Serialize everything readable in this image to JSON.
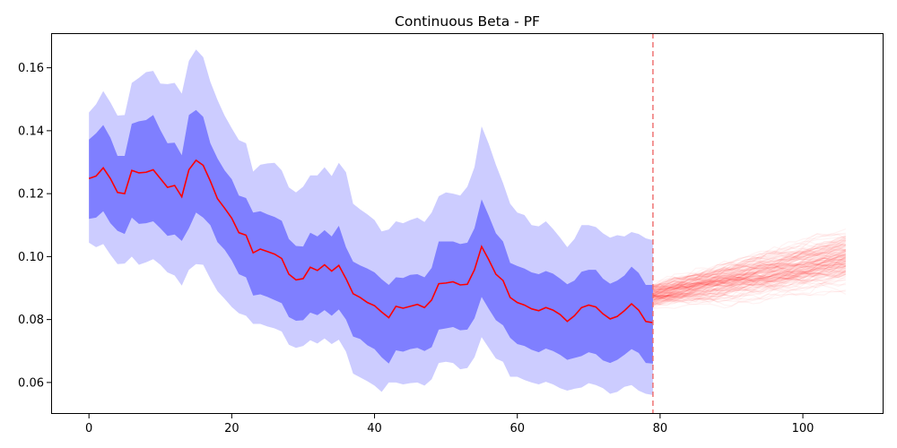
{
  "chart_data": {
    "type": "area",
    "title": "Continuous Beta - PF",
    "xlabel": "",
    "ylabel": "",
    "xlim": [
      -5.3,
      111.3
    ],
    "ylim": [
      0.05,
      0.171
    ],
    "x_ticks": [
      0,
      20,
      40,
      60,
      80,
      100
    ],
    "y_ticks": [
      0.06,
      0.08,
      0.1,
      0.12,
      0.14,
      0.16
    ],
    "grid": false,
    "legend": "none",
    "colors": {
      "mean_line": "#ff0000",
      "band_inner": "#7f7fff",
      "band_outer": "#ccccff",
      "forecast": "#ff0000",
      "vline": "#ef6a6a"
    },
    "vline_x": 79,
    "x": [
      0,
      1,
      2,
      3,
      4,
      5,
      6,
      7,
      8,
      9,
      10,
      11,
      12,
      13,
      14,
      15,
      16,
      17,
      18,
      19,
      20,
      21,
      22,
      23,
      24,
      25,
      26,
      27,
      28,
      29,
      30,
      31,
      32,
      33,
      34,
      35,
      36,
      37,
      38,
      39,
      40,
      41,
      42,
      43,
      44,
      45,
      46,
      47,
      48,
      49,
      50,
      51,
      52,
      53,
      54,
      55,
      56,
      57,
      58,
      59,
      60,
      61,
      62,
      63,
      64,
      65,
      66,
      67,
      68,
      69,
      70,
      71,
      72,
      73,
      74,
      75,
      76,
      77,
      78,
      79
    ],
    "mean": [
      0.1248,
      0.1256,
      0.1282,
      0.1248,
      0.1204,
      0.12,
      0.1274,
      0.1266,
      0.1268,
      0.1276,
      0.1248,
      0.122,
      0.1226,
      0.119,
      0.1276,
      0.1306,
      0.129,
      0.124,
      0.1184,
      0.1154,
      0.1122,
      0.1076,
      0.1068,
      0.1012,
      0.1024,
      0.1016,
      0.1008,
      0.0994,
      0.0944,
      0.0926,
      0.093,
      0.0966,
      0.0956,
      0.0974,
      0.0954,
      0.0972,
      0.093,
      0.0882,
      0.087,
      0.0854,
      0.0844,
      0.0824,
      0.0806,
      0.0842,
      0.0836,
      0.0842,
      0.0848,
      0.0838,
      0.0862,
      0.0914,
      0.0916,
      0.092,
      0.091,
      0.0912,
      0.0958,
      0.1032,
      0.099,
      0.0944,
      0.0924,
      0.087,
      0.0854,
      0.0846,
      0.0834,
      0.0828,
      0.0838,
      0.083,
      0.0816,
      0.0794,
      0.0812,
      0.0838,
      0.0846,
      0.084,
      0.0818,
      0.0802,
      0.081,
      0.0828,
      0.085,
      0.083,
      0.0794,
      0.079
    ],
    "inner_upper": [
      0.1372,
      0.1392,
      0.1418,
      0.1378,
      0.132,
      0.132,
      0.1422,
      0.143,
      0.1434,
      0.145,
      0.1402,
      0.136,
      0.1362,
      0.1322,
      0.145,
      0.1466,
      0.1444,
      0.136,
      0.1312,
      0.1274,
      0.1246,
      0.1194,
      0.1186,
      0.114,
      0.1144,
      0.1134,
      0.1126,
      0.1114,
      0.1056,
      0.1034,
      0.1032,
      0.1076,
      0.1064,
      0.1084,
      0.1064,
      0.1098,
      0.103,
      0.0984,
      0.0972,
      0.0962,
      0.095,
      0.0928,
      0.091,
      0.0934,
      0.0932,
      0.0942,
      0.0944,
      0.0934,
      0.0964,
      0.1048,
      0.1048,
      0.1048,
      0.104,
      0.1044,
      0.109,
      0.1182,
      0.113,
      0.1074,
      0.1048,
      0.098,
      0.097,
      0.0962,
      0.095,
      0.0944,
      0.0954,
      0.0946,
      0.093,
      0.0912,
      0.0924,
      0.0952,
      0.0958,
      0.0958,
      0.093,
      0.0914,
      0.0924,
      0.094,
      0.0968,
      0.0948,
      0.091,
      0.091
    ],
    "inner_lower": [
      0.112,
      0.1124,
      0.1144,
      0.1106,
      0.1082,
      0.1072,
      0.1124,
      0.1104,
      0.1106,
      0.1112,
      0.109,
      0.1066,
      0.107,
      0.105,
      0.109,
      0.114,
      0.1124,
      0.11,
      0.1046,
      0.1022,
      0.0988,
      0.0944,
      0.0934,
      0.0876,
      0.088,
      0.0872,
      0.0862,
      0.0852,
      0.0808,
      0.0796,
      0.0798,
      0.0822,
      0.0814,
      0.083,
      0.0812,
      0.0832,
      0.08,
      0.0746,
      0.0738,
      0.0718,
      0.0706,
      0.068,
      0.066,
      0.0702,
      0.0698,
      0.0706,
      0.071,
      0.07,
      0.0712,
      0.0768,
      0.0772,
      0.0776,
      0.0766,
      0.0768,
      0.0804,
      0.0872,
      0.0834,
      0.0798,
      0.0782,
      0.0742,
      0.0722,
      0.0716,
      0.0704,
      0.0696,
      0.0708,
      0.07,
      0.0688,
      0.0672,
      0.0678,
      0.0684,
      0.0696,
      0.069,
      0.067,
      0.0662,
      0.0672,
      0.0688,
      0.0706,
      0.0694,
      0.0662,
      0.066
    ],
    "outer_upper": [
      0.1458,
      0.1484,
      0.1526,
      0.149,
      0.1448,
      0.145,
      0.1552,
      0.1568,
      0.1586,
      0.159,
      0.155,
      0.1548,
      0.1552,
      0.1518,
      0.1622,
      0.1658,
      0.1634,
      0.1556,
      0.1498,
      0.1448,
      0.1408,
      0.137,
      0.136,
      0.127,
      0.1292,
      0.1296,
      0.1298,
      0.1274,
      0.122,
      0.1204,
      0.1222,
      0.1258,
      0.1258,
      0.1284,
      0.1256,
      0.1298,
      0.1268,
      0.1168,
      0.115,
      0.1134,
      0.1116,
      0.108,
      0.1086,
      0.1112,
      0.1106,
      0.1116,
      0.1124,
      0.111,
      0.114,
      0.1192,
      0.1204,
      0.12,
      0.1194,
      0.1222,
      0.1284,
      0.1414,
      0.1358,
      0.1292,
      0.1234,
      0.1168,
      0.114,
      0.1132,
      0.11,
      0.1096,
      0.1112,
      0.1088,
      0.106,
      0.103,
      0.1056,
      0.11,
      0.11,
      0.1094,
      0.1074,
      0.106,
      0.1068,
      0.1064,
      0.1078,
      0.1072,
      0.1058,
      0.1052
    ],
    "outer_lower": [
      0.1044,
      0.103,
      0.104,
      0.1006,
      0.0976,
      0.0978,
      0.1,
      0.0974,
      0.0982,
      0.0992,
      0.0974,
      0.095,
      0.094,
      0.0908,
      0.0958,
      0.0976,
      0.0974,
      0.093,
      0.089,
      0.0866,
      0.084,
      0.082,
      0.0812,
      0.0786,
      0.0786,
      0.0778,
      0.0772,
      0.0762,
      0.072,
      0.071,
      0.0716,
      0.0734,
      0.0724,
      0.074,
      0.0722,
      0.0736,
      0.0698,
      0.0628,
      0.0616,
      0.0604,
      0.059,
      0.057,
      0.06,
      0.06,
      0.0594,
      0.0598,
      0.06,
      0.059,
      0.061,
      0.0662,
      0.0666,
      0.0662,
      0.0642,
      0.0646,
      0.068,
      0.0744,
      0.071,
      0.0676,
      0.0666,
      0.0618,
      0.0618,
      0.0608,
      0.06,
      0.0594,
      0.0602,
      0.0594,
      0.0582,
      0.0574,
      0.058,
      0.0584,
      0.0598,
      0.0592,
      0.0582,
      0.0564,
      0.057,
      0.0586,
      0.0592,
      0.0574,
      0.0564,
      0.056
    ],
    "forecast": {
      "x_start": 79,
      "x_end": 106,
      "y_start_mean": 0.088,
      "y_end_mean": 0.1,
      "spread_start": 0.0018,
      "spread_end": 0.0052,
      "paths": 160
    }
  }
}
